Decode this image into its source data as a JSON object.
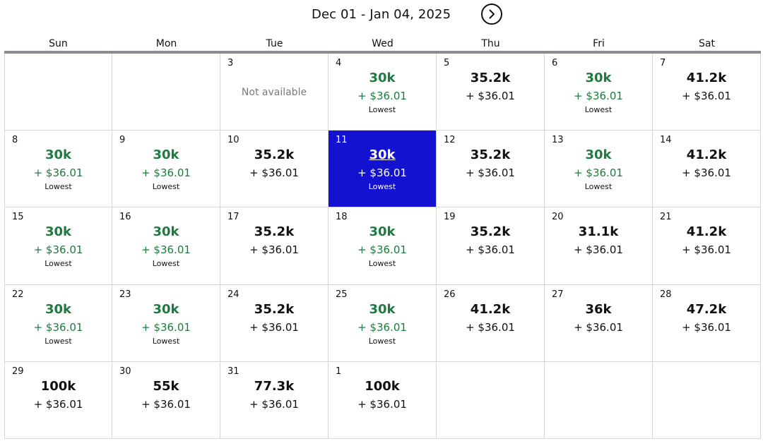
{
  "header": {
    "date_range": "Dec 01 - Jan 04, 2025",
    "next_icon": "chevron-right-icon"
  },
  "weekdays": [
    "Sun",
    "Mon",
    "Tue",
    "Wed",
    "Thu",
    "Fri",
    "Sat"
  ],
  "labels": {
    "lowest": "Lowest",
    "not_available": "Not available"
  },
  "colors": {
    "lowest_green": "#1f7a3f",
    "selected_blue": "#1212d0",
    "divider_gray": "#8a8e93"
  },
  "selected_day": "11",
  "days": [
    {
      "day": "",
      "empty": true
    },
    {
      "day": "",
      "empty": true
    },
    {
      "day": "3",
      "unavailable": true
    },
    {
      "day": "4",
      "points": "30k",
      "cash": "+ $36.01",
      "lowest": true
    },
    {
      "day": "5",
      "points": "35.2k",
      "cash": "+ $36.01",
      "lowest": false
    },
    {
      "day": "6",
      "points": "30k",
      "cash": "+ $36.01",
      "lowest": true
    },
    {
      "day": "7",
      "points": "41.2k",
      "cash": "+ $36.01",
      "lowest": false
    },
    {
      "day": "8",
      "points": "30k",
      "cash": "+ $36.01",
      "lowest": true
    },
    {
      "day": "9",
      "points": "30k",
      "cash": "+ $36.01",
      "lowest": true
    },
    {
      "day": "10",
      "points": "35.2k",
      "cash": "+ $36.01",
      "lowest": false
    },
    {
      "day": "11",
      "points": "30k",
      "cash": "+ $36.01",
      "lowest": true,
      "selected": true
    },
    {
      "day": "12",
      "points": "35.2k",
      "cash": "+ $36.01",
      "lowest": false
    },
    {
      "day": "13",
      "points": "30k",
      "cash": "+ $36.01",
      "lowest": true
    },
    {
      "day": "14",
      "points": "41.2k",
      "cash": "+ $36.01",
      "lowest": false
    },
    {
      "day": "15",
      "points": "30k",
      "cash": "+ $36.01",
      "lowest": true
    },
    {
      "day": "16",
      "points": "30k",
      "cash": "+ $36.01",
      "lowest": true
    },
    {
      "day": "17",
      "points": "35.2k",
      "cash": "+ $36.01",
      "lowest": false
    },
    {
      "day": "18",
      "points": "30k",
      "cash": "+ $36.01",
      "lowest": true
    },
    {
      "day": "19",
      "points": "35.2k",
      "cash": "+ $36.01",
      "lowest": false
    },
    {
      "day": "20",
      "points": "31.1k",
      "cash": "+ $36.01",
      "lowest": false
    },
    {
      "day": "21",
      "points": "41.2k",
      "cash": "+ $36.01",
      "lowest": false
    },
    {
      "day": "22",
      "points": "30k",
      "cash": "+ $36.01",
      "lowest": true
    },
    {
      "day": "23",
      "points": "30k",
      "cash": "+ $36.01",
      "lowest": true
    },
    {
      "day": "24",
      "points": "35.2k",
      "cash": "+ $36.01",
      "lowest": false
    },
    {
      "day": "25",
      "points": "30k",
      "cash": "+ $36.01",
      "lowest": true
    },
    {
      "day": "26",
      "points": "41.2k",
      "cash": "+ $36.01",
      "lowest": false
    },
    {
      "day": "27",
      "points": "36k",
      "cash": "+ $36.01",
      "lowest": false
    },
    {
      "day": "28",
      "points": "47.2k",
      "cash": "+ $36.01",
      "lowest": false
    },
    {
      "day": "29",
      "points": "100k",
      "cash": "+ $36.01",
      "lowest": false
    },
    {
      "day": "30",
      "points": "55k",
      "cash": "+ $36.01",
      "lowest": false
    },
    {
      "day": "31",
      "points": "77.3k",
      "cash": "+ $36.01",
      "lowest": false
    },
    {
      "day": "1",
      "points": "100k",
      "cash": "+ $36.01",
      "lowest": false
    },
    {
      "day": "",
      "empty": true
    },
    {
      "day": "",
      "empty": true
    },
    {
      "day": "",
      "empty": true
    }
  ]
}
